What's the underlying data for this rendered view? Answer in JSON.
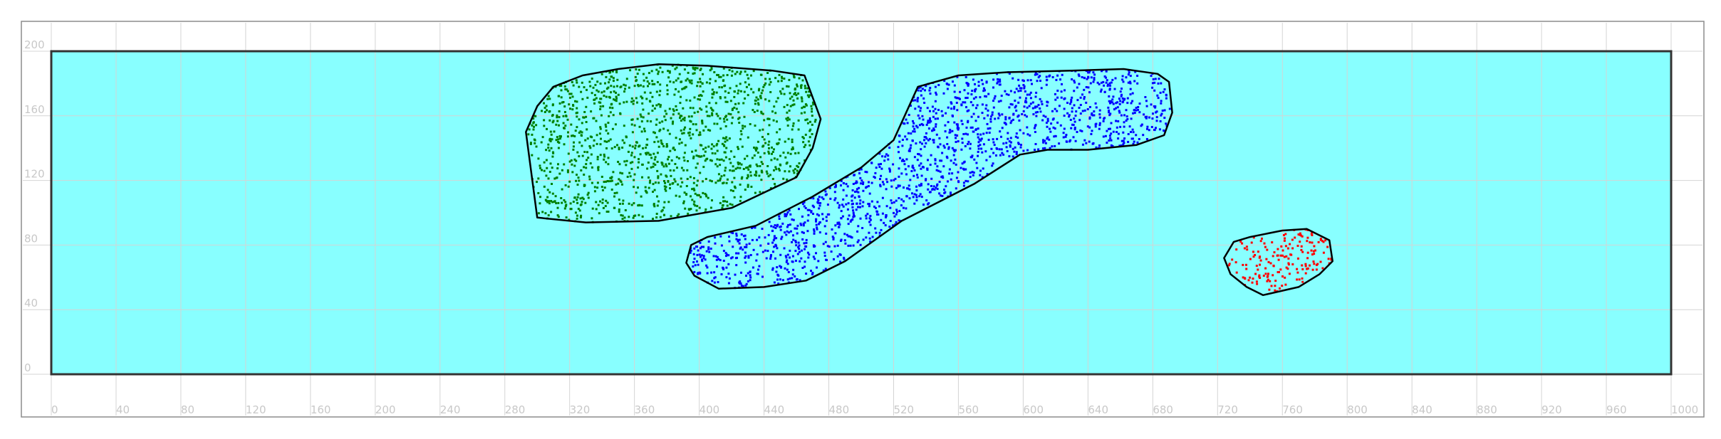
{
  "chart_data": {
    "type": "scatter",
    "title": "",
    "xlabel": "",
    "ylabel": "",
    "xlim": [
      0,
      1000
    ],
    "ylim": [
      0,
      200
    ],
    "grid": true,
    "legend": "none",
    "background_color": "#88ffff",
    "x_ticks": [
      "0",
      "40",
      "80",
      "120",
      "160",
      "200",
      "240",
      "280",
      "320",
      "360",
      "400",
      "440",
      "480",
      "520",
      "560",
      "600",
      "640",
      "680",
      "720",
      "760",
      "800",
      "840",
      "880",
      "920",
      "960",
      "1000"
    ],
    "y_ticks": [
      "0",
      "40",
      "80",
      "120",
      "160",
      "200"
    ],
    "clusters": [
      {
        "color": "#008000",
        "point_count": 1400,
        "outline": [
          [
            300,
            97
          ],
          [
            330,
            94
          ],
          [
            375,
            95
          ],
          [
            420,
            103
          ],
          [
            460,
            122
          ],
          [
            470,
            140
          ],
          [
            475,
            158
          ],
          [
            465,
            185
          ],
          [
            445,
            188
          ],
          [
            405,
            191
          ],
          [
            375,
            192
          ],
          [
            350,
            189
          ],
          [
            328,
            185
          ],
          [
            310,
            178
          ],
          [
            300,
            166
          ],
          [
            293,
            150
          ]
        ]
      },
      {
        "color": "#0000ff",
        "point_count": 1600,
        "outline": [
          [
            412,
            53
          ],
          [
            440,
            54
          ],
          [
            466,
            58
          ],
          [
            490,
            70
          ],
          [
            525,
            95
          ],
          [
            570,
            118
          ],
          [
            598,
            136
          ],
          [
            615,
            139
          ],
          [
            640,
            139
          ],
          [
            670,
            142
          ],
          [
            687,
            148
          ],
          [
            692,
            162
          ],
          [
            690,
            181
          ],
          [
            683,
            186
          ],
          [
            662,
            189
          ],
          [
            630,
            188
          ],
          [
            590,
            187
          ],
          [
            560,
            185
          ],
          [
            535,
            178
          ],
          [
            520,
            145
          ],
          [
            500,
            128
          ],
          [
            470,
            110
          ],
          [
            435,
            92
          ],
          [
            405,
            85
          ],
          [
            395,
            80
          ],
          [
            392,
            69
          ],
          [
            397,
            61
          ]
        ]
      },
      {
        "color": "#ff0000",
        "point_count": 170,
        "outline": [
          [
            748,
            49
          ],
          [
            770,
            54
          ],
          [
            783,
            62
          ],
          [
            791,
            70
          ],
          [
            789,
            83
          ],
          [
            775,
            90
          ],
          [
            760,
            89
          ],
          [
            740,
            85
          ],
          [
            730,
            82
          ],
          [
            724,
            72
          ],
          [
            728,
            62
          ],
          [
            738,
            54
          ]
        ]
      }
    ]
  }
}
